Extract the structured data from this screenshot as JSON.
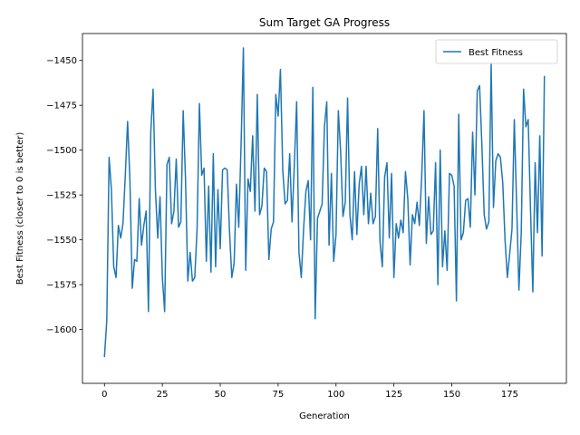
{
  "chart_data": {
    "type": "line",
    "title": "Sum Target GA Progress",
    "xlabel": "Generation",
    "ylabel": "Best Fitness (closer to 0 is better)",
    "xlim": [
      -9.5,
      199.5
    ],
    "ylim": [
      -1630,
      -1435
    ],
    "xticks": [
      0,
      25,
      50,
      75,
      100,
      125,
      150,
      175
    ],
    "yticks": [
      -1600,
      -1575,
      -1550,
      -1525,
      -1500,
      -1475,
      -1450
    ],
    "grid": false,
    "legend_position": "top-right",
    "colors": {
      "series": "#1f77b4",
      "axes": "#000000",
      "background": "#ffffff"
    },
    "series": [
      {
        "name": "Best Fitness",
        "x": [
          0,
          1,
          2,
          3,
          4,
          5,
          6,
          7,
          8,
          9,
          10,
          11,
          12,
          13,
          14,
          15,
          16,
          17,
          18,
          19,
          20,
          21,
          22,
          23,
          24,
          25,
          26,
          27,
          28,
          29,
          30,
          31,
          32,
          33,
          34,
          35,
          36,
          37,
          38,
          39,
          40,
          41,
          42,
          43,
          44,
          45,
          46,
          47,
          48,
          49,
          50,
          51,
          52,
          53,
          54,
          55,
          56,
          57,
          58,
          59,
          60,
          61,
          62,
          63,
          64,
          65,
          66,
          67,
          68,
          69,
          70,
          71,
          72,
          73,
          74,
          75,
          76,
          77,
          78,
          79,
          80,
          81,
          82,
          83,
          84,
          85,
          86,
          87,
          88,
          89,
          90,
          91,
          92,
          93,
          94,
          95,
          96,
          97,
          98,
          99,
          100,
          101,
          102,
          103,
          104,
          105,
          106,
          107,
          108,
          109,
          110,
          111,
          112,
          113,
          114,
          115,
          116,
          117,
          118,
          119,
          120,
          121,
          122,
          123,
          124,
          125,
          126,
          127,
          128,
          129,
          130,
          131,
          132,
          133,
          134,
          135,
          136,
          137,
          138,
          139,
          140,
          141,
          142,
          143,
          144,
          145,
          146,
          147,
          148,
          149,
          150,
          151,
          152,
          153,
          154,
          155,
          156,
          157,
          158,
          159,
          160,
          161,
          162,
          163,
          164,
          165,
          166,
          167,
          168,
          169,
          170,
          171,
          172,
          173,
          174,
          175,
          176,
          177,
          178,
          179,
          180,
          181,
          182,
          183,
          184,
          185,
          186,
          187,
          188,
          189,
          190
        ],
        "values": [
          -1615,
          -1595,
          -1504,
          -1522,
          -1565,
          -1571,
          -1542,
          -1549,
          -1541,
          -1514,
          -1484,
          -1517,
          -1577,
          -1561,
          -1562,
          -1527,
          -1553,
          -1542,
          -1534,
          -1590,
          -1490,
          -1466,
          -1522,
          -1549,
          -1526,
          -1571,
          -1590,
          -1508,
          -1504,
          -1541,
          -1534,
          -1505,
          -1543,
          -1540,
          -1478,
          -1516,
          -1573,
          -1557,
          -1573,
          -1571,
          -1544,
          -1474,
          -1514,
          -1510,
          -1562,
          -1520,
          -1568,
          -1502,
          -1565,
          -1522,
          -1555,
          -1511,
          -1510,
          -1511,
          -1545,
          -1571,
          -1563,
          -1519,
          -1543,
          -1497,
          -1443,
          -1567,
          -1516,
          -1523,
          -1492,
          -1534,
          -1469,
          -1536,
          -1531,
          -1510,
          -1512,
          -1561,
          -1544,
          -1540,
          -1469,
          -1481,
          -1455,
          -1511,
          -1530,
          -1528,
          -1502,
          -1540,
          -1508,
          -1473,
          -1557,
          -1571,
          -1544,
          -1523,
          -1517,
          -1550,
          -1465,
          -1594,
          -1538,
          -1534,
          -1530,
          -1487,
          -1473,
          -1553,
          -1513,
          -1562,
          -1547,
          -1478,
          -1501,
          -1537,
          -1529,
          -1471,
          -1536,
          -1550,
          -1512,
          -1547,
          -1519,
          -1509,
          -1536,
          -1509,
          -1541,
          -1524,
          -1541,
          -1537,
          -1488,
          -1551,
          -1565,
          -1515,
          -1507,
          -1549,
          -1513,
          -1571,
          -1541,
          -1549,
          -1539,
          -1546,
          -1512,
          -1527,
          -1564,
          -1536,
          -1541,
          -1529,
          -1542,
          -1515,
          -1478,
          -1552,
          -1526,
          -1547,
          -1545,
          -1507,
          -1575,
          -1500,
          -1565,
          -1545,
          -1567,
          -1513,
          -1514,
          -1520,
          -1584,
          -1480,
          -1550,
          -1546,
          -1528,
          -1527,
          -1543,
          -1490,
          -1525,
          -1467,
          -1464,
          -1497,
          -1536,
          -1544,
          -1540,
          -1452,
          -1532,
          -1506,
          -1502,
          -1504,
          -1518,
          -1550,
          -1571,
          -1558,
          -1544,
          -1483,
          -1530,
          -1578,
          -1546,
          -1466,
          -1487,
          -1483,
          -1533,
          -1579,
          -1507,
          -1546,
          -1492,
          -1559,
          -1459
        ]
      }
    ]
  }
}
